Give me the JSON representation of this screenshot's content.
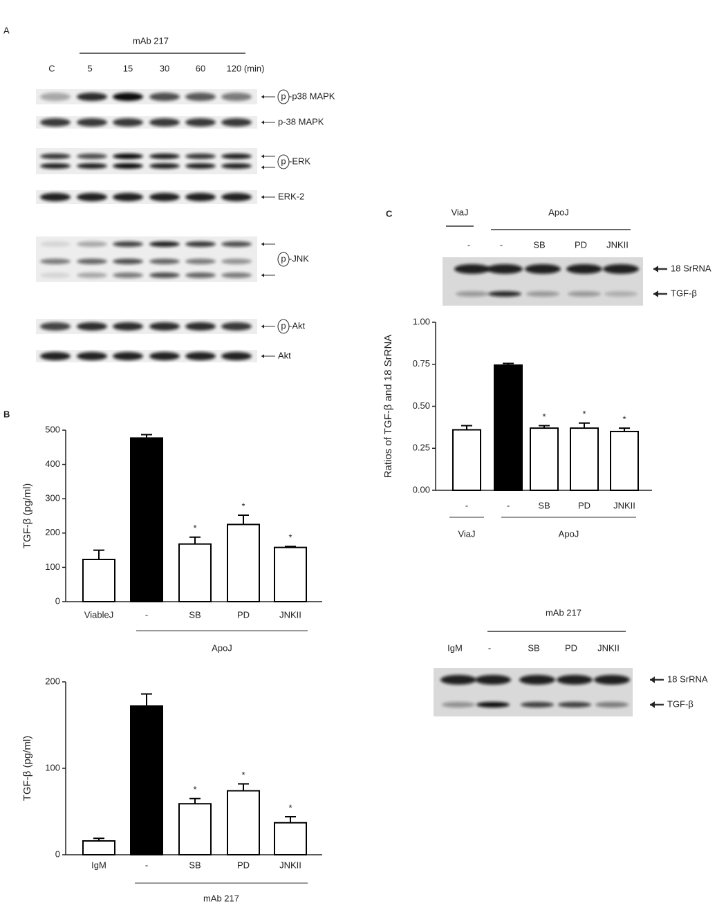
{
  "panel_a": {
    "label": "A",
    "treatment": "mAb 217",
    "columns": [
      "C",
      "5",
      "15",
      "30",
      "60",
      "120 (min)"
    ],
    "blots": [
      {
        "phospho": "p",
        "label": "-p38 MAPK"
      },
      {
        "label": "p-38 MAPK"
      },
      {
        "phospho": "p",
        "label": "-ERK"
      },
      {
        "label": "ERK-2"
      },
      {
        "phospho": "p",
        "label": "-JNK"
      },
      {
        "phospho": "p",
        "label": "-Akt"
      },
      {
        "label": "Akt"
      }
    ]
  },
  "panel_b": {
    "label": "B"
  },
  "panel_c": {
    "label": "C",
    "groups": [
      "ViaJ",
      "ApoJ"
    ],
    "lanes": [
      "-",
      "-",
      "SB",
      "PD",
      "JNKII"
    ],
    "bands": [
      "18 SrRNA",
      "TGF-β"
    ]
  },
  "panel_d": {
    "treatment": "mAb 217",
    "lanes": [
      "IgM",
      "-",
      "SB",
      "PD",
      "JNKII"
    ],
    "bands": [
      "18 SrRNA",
      "TGF-β"
    ]
  },
  "chart_data": [
    {
      "type": "bar",
      "ylabel": "TGF-β (pg/ml)",
      "categories": [
        "ViableJ",
        "-",
        "SB",
        "PD",
        "JNKII"
      ],
      "values": [
        123,
        477,
        168,
        225,
        158
      ],
      "errors": [
        27,
        10,
        20,
        27,
        3
      ],
      "colors": [
        "#ffffff",
        "#000000",
        "#ffffff",
        "#ffffff",
        "#ffffff"
      ],
      "significance": [
        null,
        null,
        "*",
        "*",
        "*"
      ],
      "group_labels": [
        "ApoJ"
      ],
      "ylim": [
        0,
        500
      ],
      "yticks": [
        0,
        100,
        200,
        300,
        400,
        500
      ]
    },
    {
      "type": "bar",
      "ylabel": "TGF-β (pg/ml)",
      "categories": [
        "IgM",
        "-",
        "SB",
        "PD",
        "JNKII"
      ],
      "values": [
        16,
        172,
        59,
        74,
        37
      ],
      "errors": [
        3,
        14,
        6,
        8,
        7
      ],
      "colors": [
        "#ffffff",
        "#000000",
        "#ffffff",
        "#ffffff",
        "#ffffff"
      ],
      "significance": [
        null,
        null,
        "*",
        "*",
        "*"
      ],
      "group_labels": [
        "mAb 217"
      ],
      "ylim": [
        0,
        200
      ],
      "yticks": [
        0,
        100,
        200
      ]
    },
    {
      "type": "bar",
      "ylabel": "Ratios of TGF-β and 18 SrRNA",
      "categories": [
        "-",
        "-",
        "SB",
        "PD",
        "JNKII"
      ],
      "values": [
        0.36,
        0.745,
        0.37,
        0.37,
        0.35
      ],
      "errors": [
        0.025,
        0.01,
        0.015,
        0.03,
        0.02
      ],
      "colors": [
        "#ffffff",
        "#000000",
        "#ffffff",
        "#ffffff",
        "#ffffff"
      ],
      "significance": [
        null,
        null,
        "*",
        "*",
        "*"
      ],
      "group_labels": [
        "ViaJ",
        "ApoJ"
      ],
      "ylim": [
        0,
        1
      ],
      "yticks": [
        {
          "value": 0,
          "label": "0.00"
        },
        {
          "value": 0.25,
          "label": "0.25"
        },
        {
          "value": 0.5,
          "label": "0.50"
        },
        {
          "value": 0.75,
          "label": "0.75"
        },
        {
          "value": 1,
          "label": "1.00"
        }
      ]
    }
  ]
}
